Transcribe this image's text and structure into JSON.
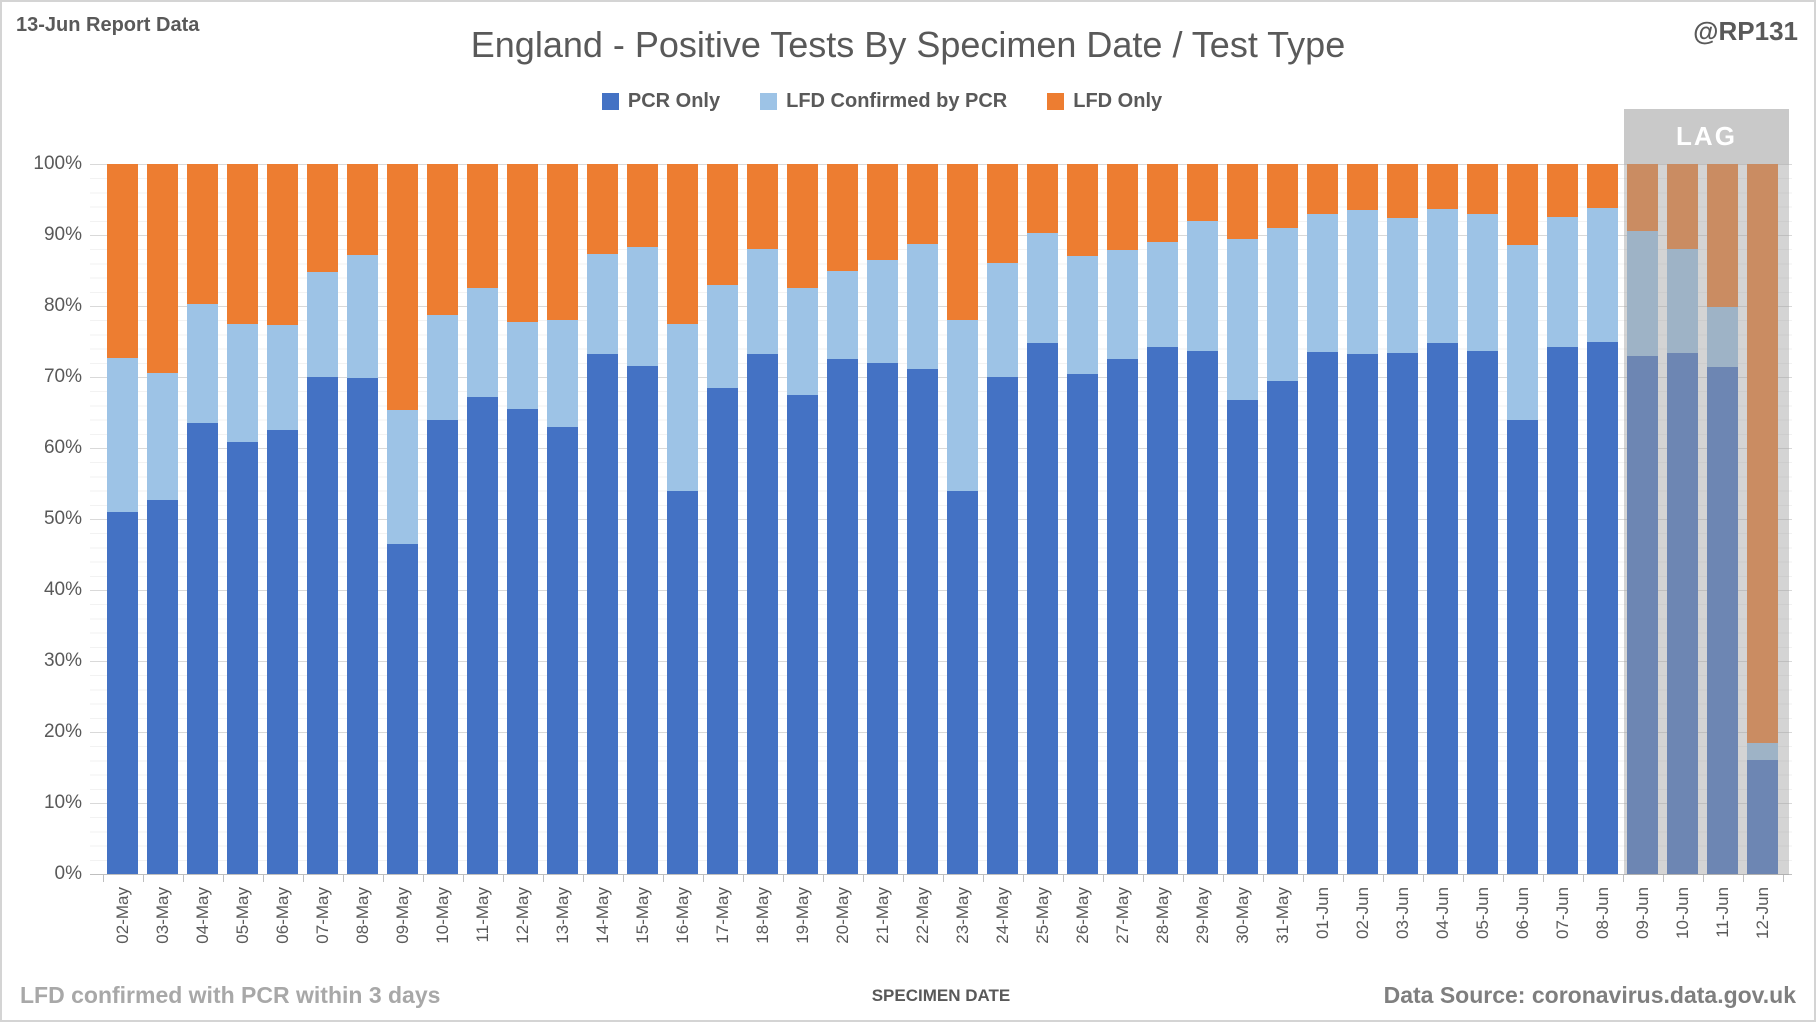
{
  "header": {
    "report_label": "13-Jun Report Data",
    "title": "England - Positive Tests By Specimen Date / Test Type",
    "author_handle": "@RP131"
  },
  "footer": {
    "note": "LFD confirmed with PCR within 3 days",
    "data_source": "Data Source: coronavirus.data.gov.uk"
  },
  "lag": {
    "label": "LAG",
    "categories": [
      "09-Jun",
      "10-Jun",
      "11-Jun",
      "12-Jun"
    ],
    "header_color": "#c9c9c9",
    "wash_color": "rgba(160,160,160,0.45)"
  },
  "colors": {
    "pcr_only": "#4472C4",
    "lfd_confirmed": "#9DC3E6",
    "lfd_only": "#ED7D31",
    "text": "#595959",
    "gridline_major": "#d9d9d9",
    "gridline_minor": "#f2f2f2",
    "axis": "#bfbfbf"
  },
  "chart_data": {
    "type": "bar",
    "stacked": true,
    "stacked_percent": true,
    "title": "England - Positive Tests By Specimen Date / Test Type",
    "xlabel": "SPECIMEN DATE",
    "ylabel": "",
    "ylim": [
      0,
      100
    ],
    "ytick_step": 10,
    "ytick_format": "percent",
    "grid": true,
    "legend_position": "top",
    "categories": [
      "02-May",
      "03-May",
      "04-May",
      "05-May",
      "06-May",
      "07-May",
      "08-May",
      "09-May",
      "10-May",
      "11-May",
      "12-May",
      "13-May",
      "14-May",
      "15-May",
      "16-May",
      "17-May",
      "18-May",
      "19-May",
      "20-May",
      "21-May",
      "22-May",
      "23-May",
      "24-May",
      "25-May",
      "26-May",
      "27-May",
      "28-May",
      "29-May",
      "30-May",
      "31-May",
      "01-Jun",
      "02-Jun",
      "03-Jun",
      "04-Jun",
      "05-Jun",
      "06-Jun",
      "07-Jun",
      "08-Jun",
      "09-Jun",
      "10-Jun",
      "11-Jun",
      "12-Jun"
    ],
    "series": [
      {
        "name": "PCR Only",
        "color": "#4472C4",
        "values": [
          51.0,
          52.7,
          63.5,
          60.8,
          62.5,
          70.0,
          69.8,
          46.5,
          64.0,
          67.2,
          65.5,
          63.0,
          73.2,
          71.5,
          54.0,
          68.5,
          73.2,
          67.5,
          72.6,
          72.0,
          71.2,
          54.0,
          70.0,
          74.8,
          70.5,
          72.6,
          74.2,
          73.7,
          66.7,
          69.4,
          73.5,
          73.2,
          73.4,
          74.8,
          73.6,
          63.9,
          74.3,
          75.0,
          73.0,
          73.4,
          71.4,
          16.0
        ]
      },
      {
        "name": "LFD Confirmed by PCR",
        "color": "#9DC3E6",
        "values": [
          21.7,
          17.9,
          16.8,
          16.7,
          14.8,
          14.8,
          17.4,
          18.8,
          14.8,
          15.3,
          12.3,
          15.0,
          14.1,
          16.8,
          23.5,
          14.5,
          14.8,
          15.1,
          12.4,
          14.5,
          17.6,
          24.0,
          16.0,
          15.5,
          16.5,
          15.3,
          14.8,
          18.3,
          22.7,
          21.6,
          19.4,
          20.3,
          19.0,
          18.8,
          19.4,
          24.7,
          18.3,
          18.8,
          17.6,
          14.6,
          8.5,
          2.4
        ]
      },
      {
        "name": "LFD Only",
        "color": "#ED7D31",
        "values": [
          27.3,
          29.4,
          19.7,
          22.5,
          22.7,
          15.2,
          12.8,
          34.7,
          21.2,
          17.5,
          22.2,
          22.0,
          12.7,
          11.7,
          22.5,
          17.0,
          12.0,
          17.4,
          15.0,
          13.5,
          11.2,
          22.0,
          14.0,
          9.7,
          13.0,
          12.1,
          11.0,
          8.0,
          10.6,
          9.0,
          7.1,
          6.5,
          7.6,
          6.4,
          7.0,
          11.4,
          7.4,
          6.2,
          9.4,
          12.0,
          20.1,
          81.6
        ]
      }
    ]
  }
}
